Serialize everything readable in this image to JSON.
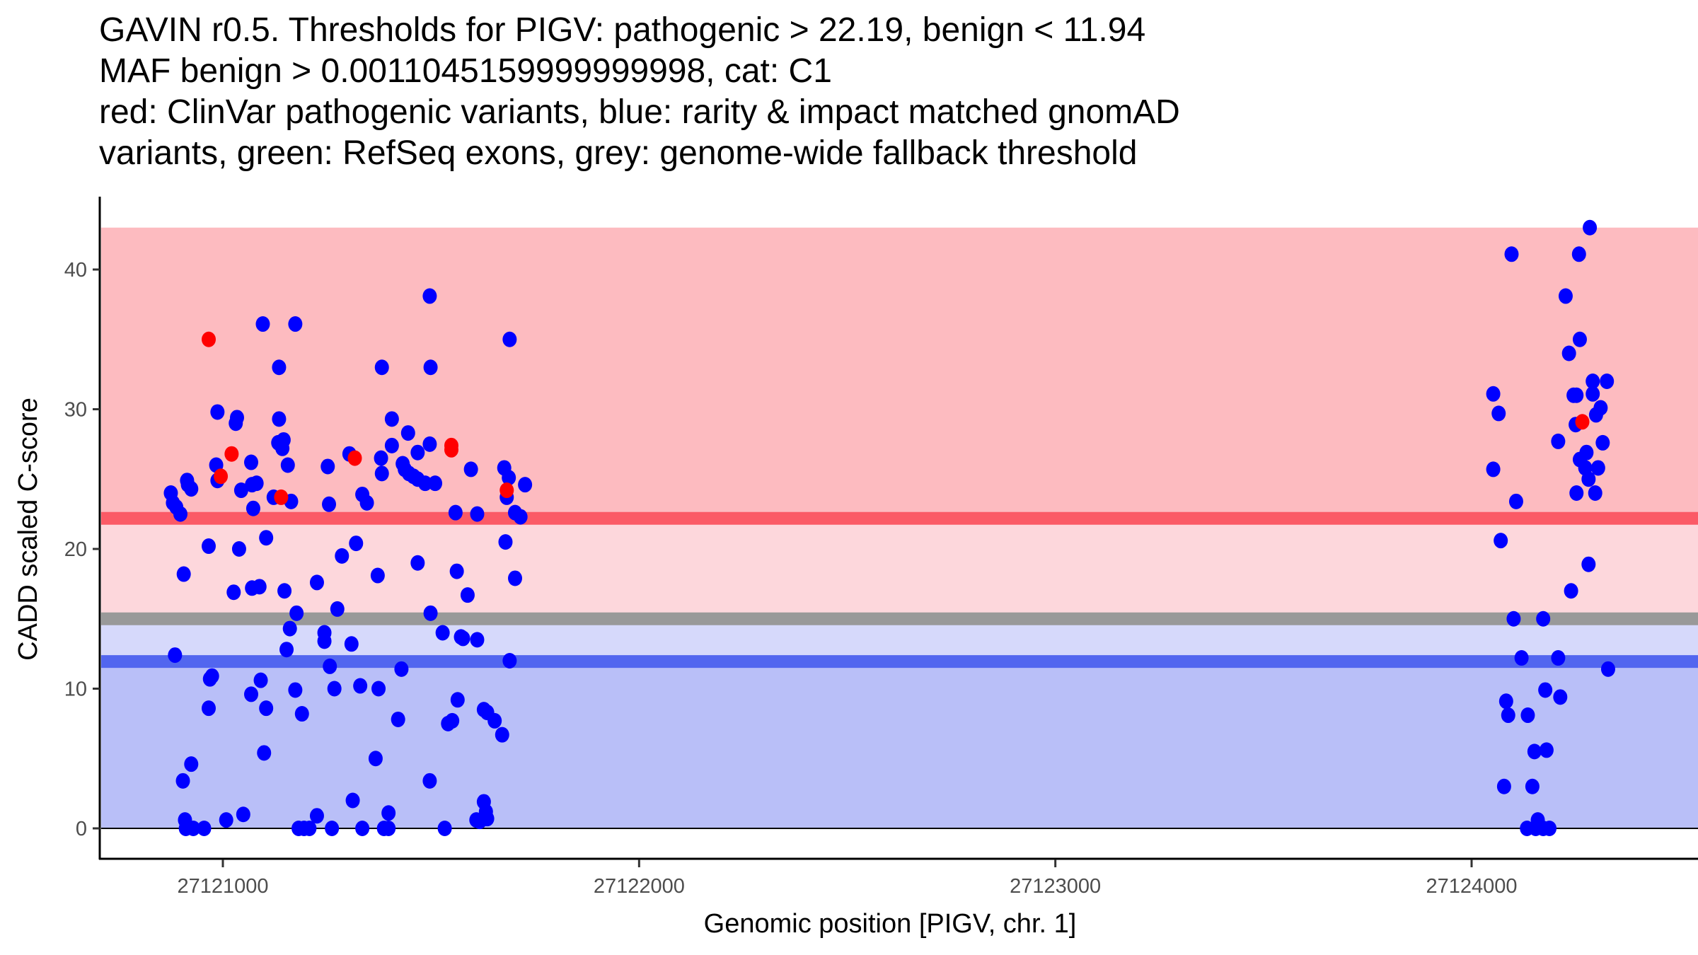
{
  "title_lines": [
    "GAVIN r0.5. Thresholds for PIGV: pathogenic > 22.19, benign < 11.94",
    "MAF benign > 0.0011045159999999998, cat: C1",
    "red: ClinVar pathogenic variants, blue: rarity & impact matched gnomAD",
    "variants, green: RefSeq exons, grey: genome-wide fallback threshold"
  ],
  "colors": {
    "pathogenic_zone": "#fdbbc0",
    "pathogenic_line": "#fb5a66",
    "grey_zone_upper": "#fdd7dc",
    "fallback_line": "#999999",
    "grey_zone_lower": "#d6d9fb",
    "benign_line": "#5266ef",
    "benign_zone": "#b9bff8",
    "clinvar_point": "#ff0000",
    "gnomad_point": "#0000ff"
  },
  "chart_data": {
    "type": "scatter",
    "title": "GAVIN r0.5. Thresholds for PIGV: pathogenic > 22.19, benign < 11.94 / MAF benign > 0.0011045159999999998, cat: C1 / red: ClinVar pathogenic variants, blue: rarity & impact matched gnomAD variants, green: RefSeq exons, grey: genome-wide fallback threshold",
    "xlabel": "Genomic position [PIGV, chr. 1]",
    "ylabel": "CADD scaled C-score",
    "xlim": [
      27120700,
      27124500
    ],
    "ylim": [
      -2,
      44
    ],
    "xticks": [
      27121000,
      27122000,
      27123000,
      27124000
    ],
    "xtick_labels": [
      "27121000",
      "27122000",
      "27123000",
      "27124000"
    ],
    "yticks": [
      0,
      10,
      20,
      30,
      40
    ],
    "ytick_labels": [
      "0",
      "10",
      "20",
      "30",
      "40"
    ],
    "grid": false,
    "legend": "none",
    "bands": [
      {
        "name": "pathogenic-zone",
        "y0": 22.19,
        "y1": 43.0,
        "color_key": "pathogenic_zone"
      },
      {
        "name": "upper-grey-zone",
        "y0": 15.0,
        "y1": 22.19,
        "color_key": "grey_zone_upper"
      },
      {
        "name": "lower-grey-zone",
        "y0": 11.94,
        "y1": 15.0,
        "color_key": "grey_zone_lower"
      },
      {
        "name": "benign-zone",
        "y0": 0,
        "y1": 11.94,
        "color_key": "benign_zone"
      }
    ],
    "hlines": [
      {
        "name": "pathogenic-threshold",
        "y": 22.19,
        "color_key": "pathogenic_line"
      },
      {
        "name": "fallback-threshold",
        "y": 15.0,
        "color_key": "fallback_line"
      },
      {
        "name": "benign-threshold",
        "y": 11.94,
        "color_key": "benign_line"
      },
      {
        "name": "zero-line",
        "y": 0,
        "color_key": "axis"
      }
    ],
    "series": [
      {
        "name": "gnomAD matched variants",
        "color_key": "gnomad_point",
        "points": [
          [
            27120875,
            24.0
          ],
          [
            27120880,
            23.3
          ],
          [
            27120888,
            23.0
          ],
          [
            27120898,
            22.5
          ],
          [
            27120916,
            24.6
          ],
          [
            27120914,
            24.9
          ],
          [
            27120924,
            24.3
          ],
          [
            27120885,
            12.4
          ],
          [
            27120906,
            18.2
          ],
          [
            27120904,
            3.4
          ],
          [
            27120924,
            4.6
          ],
          [
            27120909,
            0.6
          ],
          [
            27120911,
            0
          ],
          [
            27120929,
            0
          ],
          [
            27120955,
            0
          ],
          [
            27120966,
            20.2
          ],
          [
            27120969,
            10.7
          ],
          [
            27120974,
            10.9
          ],
          [
            27120966,
            8.6
          ],
          [
            27120987,
            29.8
          ],
          [
            27120984,
            26.0
          ],
          [
            27120987,
            24.9
          ],
          [
            27121008,
            0.6
          ],
          [
            27121026,
            16.9
          ],
          [
            27121034,
            29.4
          ],
          [
            27121031,
            29.0
          ],
          [
            27121044,
            24.2
          ],
          [
            27121039,
            20.0
          ],
          [
            27121049,
            1.0
          ],
          [
            27121068,
            26.2
          ],
          [
            27121070,
            24.6
          ],
          [
            27121073,
            22.9
          ],
          [
            27121081,
            24.7
          ],
          [
            27121068,
            9.6
          ],
          [
            27121070,
            17.2
          ],
          [
            27121088,
            17.3
          ],
          [
            27121091,
            10.6
          ],
          [
            27121096,
            36.1
          ],
          [
            27121104,
            8.6
          ],
          [
            27121099,
            5.4
          ],
          [
            27121104,
            20.8
          ],
          [
            27121122,
            23.7
          ],
          [
            27121133,
            27.6
          ],
          [
            27121135,
            33.0
          ],
          [
            27121135,
            29.3
          ],
          [
            27121143,
            27.2
          ],
          [
            27121146,
            27.8
          ],
          [
            27121148,
            17.0
          ],
          [
            27121156,
            26.0
          ],
          [
            27121153,
            12.8
          ],
          [
            27121161,
            14.3
          ],
          [
            27121164,
            23.4
          ],
          [
            27121174,
            36.1
          ],
          [
            27121177,
            15.4
          ],
          [
            27121174,
            9.9
          ],
          [
            27121190,
            8.2
          ],
          [
            27121182,
            0
          ],
          [
            27121195,
            0
          ],
          [
            27121208,
            0
          ],
          [
            27121226,
            0.9
          ],
          [
            27121226,
            17.6
          ],
          [
            27121244,
            14.0
          ],
          [
            27121244,
            13.4
          ],
          [
            27121252,
            25.9
          ],
          [
            27121255,
            23.2
          ],
          [
            27121257,
            11.6
          ],
          [
            27121268,
            10.0
          ],
          [
            27121275,
            15.7
          ],
          [
            27121286,
            19.5
          ],
          [
            27121304,
            26.8
          ],
          [
            27121262,
            0
          ],
          [
            27121309,
            13.2
          ],
          [
            27121312,
            2.0
          ],
          [
            27121320,
            20.4
          ],
          [
            27121330,
            10.2
          ],
          [
            27121335,
            23.9
          ],
          [
            27121346,
            23.3
          ],
          [
            27121335,
            0
          ],
          [
            27121367,
            5.0
          ],
          [
            27121372,
            18.1
          ],
          [
            27121374,
            10.0
          ],
          [
            27121382,
            25.4
          ],
          [
            27121380,
            26.5
          ],
          [
            27121382,
            33.0
          ],
          [
            27121387,
            0
          ],
          [
            27121398,
            0
          ],
          [
            27121398,
            1.1
          ],
          [
            27121406,
            27.4
          ],
          [
            27121406,
            29.3
          ],
          [
            27121421,
            7.8
          ],
          [
            27121429,
            11.4
          ],
          [
            27121432,
            26.1
          ],
          [
            27121437,
            25.7
          ],
          [
            27121445,
            28.3
          ],
          [
            27121447,
            25.4
          ],
          [
            27121458,
            25.2
          ],
          [
            27121468,
            26.9
          ],
          [
            27121468,
            19.0
          ],
          [
            27121468,
            25.0
          ],
          [
            27121486,
            24.7
          ],
          [
            27121497,
            38.1
          ],
          [
            27121499,
            33.0
          ],
          [
            27121497,
            27.5
          ],
          [
            27121499,
            15.4
          ],
          [
            27121497,
            3.4
          ],
          [
            27121510,
            24.7
          ],
          [
            27121528,
            14.0
          ],
          [
            27121533,
            0
          ],
          [
            27121541,
            7.5
          ],
          [
            27121551,
            7.7
          ],
          [
            27121559,
            22.6
          ],
          [
            27121562,
            18.4
          ],
          [
            27121564,
            9.2
          ],
          [
            27121572,
            13.7
          ],
          [
            27121577,
            13.6
          ],
          [
            27121588,
            16.7
          ],
          [
            27121596,
            25.7
          ],
          [
            27121611,
            13.5
          ],
          [
            27121611,
            22.5
          ],
          [
            27121609,
            0.6
          ],
          [
            27121617,
            0.5
          ],
          [
            27121627,
            1.9
          ],
          [
            27121632,
            1.2
          ],
          [
            27121635,
            0.7
          ],
          [
            27121627,
            8.5
          ],
          [
            27121635,
            8.3
          ],
          [
            27121653,
            7.7
          ],
          [
            27121671,
            6.7
          ],
          [
            27121676,
            25.8
          ],
          [
            27121679,
            20.5
          ],
          [
            27121682,
            23.7
          ],
          [
            27121687,
            25.1
          ],
          [
            27121689,
            35.0
          ],
          [
            27121689,
            12.0
          ],
          [
            27121702,
            22.6
          ],
          [
            27121702,
            17.9
          ],
          [
            27121715,
            22.3
          ],
          [
            27121726,
            24.6
          ],
          [
            27124052,
            31.1
          ],
          [
            27124065,
            29.7
          ],
          [
            27124052,
            25.7
          ],
          [
            27124070,
            20.6
          ],
          [
            27124096,
            41.1
          ],
          [
            27124107,
            23.4
          ],
          [
            27124101,
            15.0
          ],
          [
            27124120,
            12.2
          ],
          [
            27124083,
            9.1
          ],
          [
            27124088,
            8.1
          ],
          [
            27124078,
            3.0
          ],
          [
            27124135,
            8.1
          ],
          [
            27124146,
            3.0
          ],
          [
            27124151,
            5.5
          ],
          [
            27124159,
            0.6
          ],
          [
            27124133,
            0
          ],
          [
            27124154,
            0
          ],
          [
            27124172,
            0
          ],
          [
            27124187,
            0
          ],
          [
            27124172,
            15.0
          ],
          [
            27124177,
            9.9
          ],
          [
            27124180,
            5.6
          ],
          [
            27124208,
            27.7
          ],
          [
            27124208,
            12.2
          ],
          [
            27124213,
            9.4
          ],
          [
            27124226,
            38.1
          ],
          [
            27124234,
            34.0
          ],
          [
            27124239,
            17.0
          ],
          [
            27124245,
            31.0
          ],
          [
            27124252,
            31.0
          ],
          [
            27124250,
            28.9
          ],
          [
            27124258,
            41.1
          ],
          [
            27124260,
            35.0
          ],
          [
            27124260,
            26.4
          ],
          [
            27124252,
            24.0
          ],
          [
            27124273,
            25.8
          ],
          [
            27124276,
            26.9
          ],
          [
            27124284,
            43.0
          ],
          [
            27124281,
            18.9
          ],
          [
            27124281,
            25.0
          ],
          [
            27124291,
            31.1
          ],
          [
            27124291,
            32.0
          ],
          [
            27124297,
            24.0
          ],
          [
            27124299,
            29.6
          ],
          [
            27124310,
            30.1
          ],
          [
            27124304,
            25.8
          ],
          [
            27124315,
            27.6
          ],
          [
            27124325,
            32.0
          ],
          [
            27124328,
            11.4
          ]
        ]
      },
      {
        "name": "ClinVar pathogenic variants",
        "color_key": "clinvar_point",
        "points": [
          [
            27120966,
            35.0
          ],
          [
            27121021,
            26.8
          ],
          [
            27120995,
            25.2
          ],
          [
            27121140,
            23.7
          ],
          [
            27121317,
            26.5
          ],
          [
            27121549,
            27.4
          ],
          [
            27121549,
            27.1
          ],
          [
            27121682,
            24.2
          ],
          [
            27124266,
            29.1
          ]
        ]
      }
    ]
  }
}
